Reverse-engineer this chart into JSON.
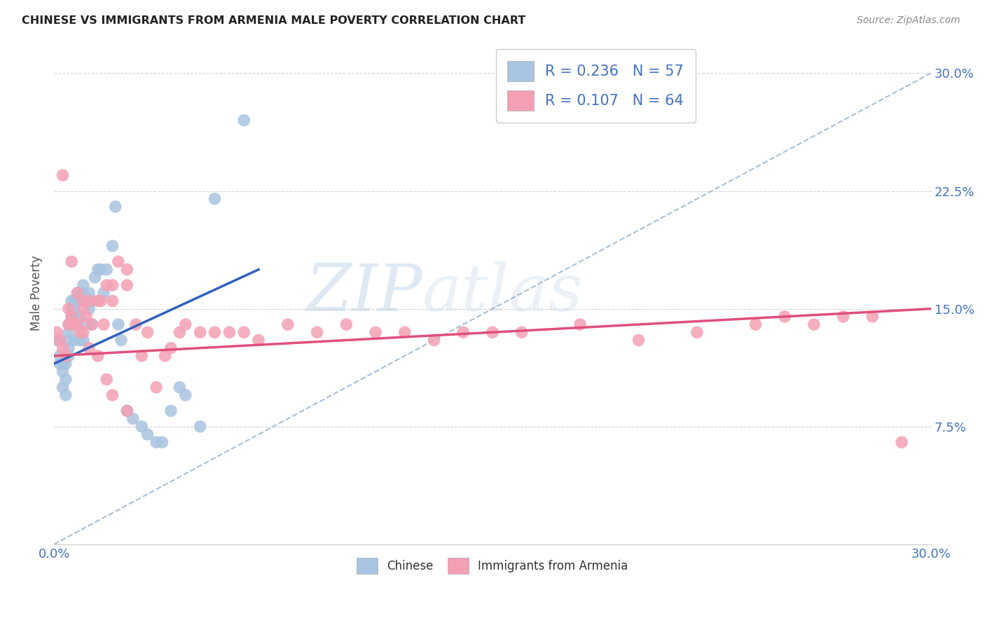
{
  "title": "CHINESE VS IMMIGRANTS FROM ARMENIA MALE POVERTY CORRELATION CHART",
  "source": "Source: ZipAtlas.com",
  "ylabel": "Male Poverty",
  "xlim": [
    0.0,
    0.3
  ],
  "ylim": [
    0.0,
    0.32
  ],
  "watermark_zip": "ZIP",
  "watermark_atlas": "atlas",
  "chinese_color": "#a8c4e0",
  "armenia_color": "#f4a0b4",
  "chinese_line_color": "#3060c0",
  "armenia_line_color": "#e0507a",
  "diagonal_color": "#a0b8d0",
  "text_color": "#4472c4",
  "chinese_scatter_x": [
    0.001,
    0.002,
    0.002,
    0.003,
    0.003,
    0.003,
    0.004,
    0.004,
    0.004,
    0.005,
    0.005,
    0.005,
    0.005,
    0.005,
    0.006,
    0.006,
    0.006,
    0.006,
    0.007,
    0.007,
    0.007,
    0.007,
    0.008,
    0.008,
    0.008,
    0.009,
    0.009,
    0.01,
    0.01,
    0.01,
    0.011,
    0.011,
    0.012,
    0.012,
    0.013,
    0.013,
    0.014,
    0.015,
    0.016,
    0.017,
    0.018,
    0.02,
    0.021,
    0.022,
    0.023,
    0.025,
    0.027,
    0.03,
    0.032,
    0.035,
    0.037,
    0.04,
    0.043,
    0.045,
    0.05,
    0.055,
    0.065
  ],
  "chinese_scatter_y": [
    0.13,
    0.12,
    0.115,
    0.115,
    0.11,
    0.1,
    0.115,
    0.105,
    0.095,
    0.14,
    0.135,
    0.13,
    0.125,
    0.12,
    0.155,
    0.15,
    0.145,
    0.14,
    0.155,
    0.15,
    0.145,
    0.13,
    0.16,
    0.155,
    0.14,
    0.145,
    0.13,
    0.165,
    0.16,
    0.13,
    0.155,
    0.14,
    0.16,
    0.15,
    0.155,
    0.14,
    0.17,
    0.175,
    0.175,
    0.16,
    0.175,
    0.19,
    0.215,
    0.14,
    0.13,
    0.085,
    0.08,
    0.075,
    0.07,
    0.065,
    0.065,
    0.085,
    0.1,
    0.095,
    0.075,
    0.22,
    0.27
  ],
  "armenia_scatter_x": [
    0.001,
    0.002,
    0.003,
    0.004,
    0.005,
    0.005,
    0.006,
    0.007,
    0.008,
    0.009,
    0.01,
    0.01,
    0.011,
    0.012,
    0.013,
    0.015,
    0.016,
    0.017,
    0.018,
    0.02,
    0.02,
    0.022,
    0.025,
    0.025,
    0.028,
    0.03,
    0.032,
    0.035,
    0.038,
    0.04,
    0.043,
    0.045,
    0.05,
    0.055,
    0.06,
    0.065,
    0.07,
    0.08,
    0.09,
    0.1,
    0.11,
    0.12,
    0.13,
    0.14,
    0.15,
    0.16,
    0.18,
    0.2,
    0.22,
    0.24,
    0.25,
    0.26,
    0.27,
    0.28,
    0.29,
    0.003,
    0.006,
    0.008,
    0.01,
    0.012,
    0.015,
    0.018,
    0.02,
    0.025
  ],
  "armenia_scatter_y": [
    0.135,
    0.13,
    0.125,
    0.12,
    0.15,
    0.14,
    0.145,
    0.14,
    0.14,
    0.135,
    0.155,
    0.15,
    0.145,
    0.155,
    0.14,
    0.155,
    0.155,
    0.14,
    0.165,
    0.165,
    0.155,
    0.18,
    0.175,
    0.165,
    0.14,
    0.12,
    0.135,
    0.1,
    0.12,
    0.125,
    0.135,
    0.14,
    0.135,
    0.135,
    0.135,
    0.135,
    0.13,
    0.14,
    0.135,
    0.14,
    0.135,
    0.135,
    0.13,
    0.135,
    0.135,
    0.135,
    0.14,
    0.13,
    0.135,
    0.14,
    0.145,
    0.14,
    0.145,
    0.145,
    0.065,
    0.235,
    0.18,
    0.16,
    0.135,
    0.125,
    0.12,
    0.105,
    0.095,
    0.085
  ],
  "chinese_line_x0": 0.0,
  "chinese_line_y0": 0.115,
  "chinese_line_x1": 0.07,
  "chinese_line_y1": 0.175,
  "armenia_line_x0": 0.0,
  "armenia_line_y0": 0.12,
  "armenia_line_x1": 0.3,
  "armenia_line_y1": 0.15
}
